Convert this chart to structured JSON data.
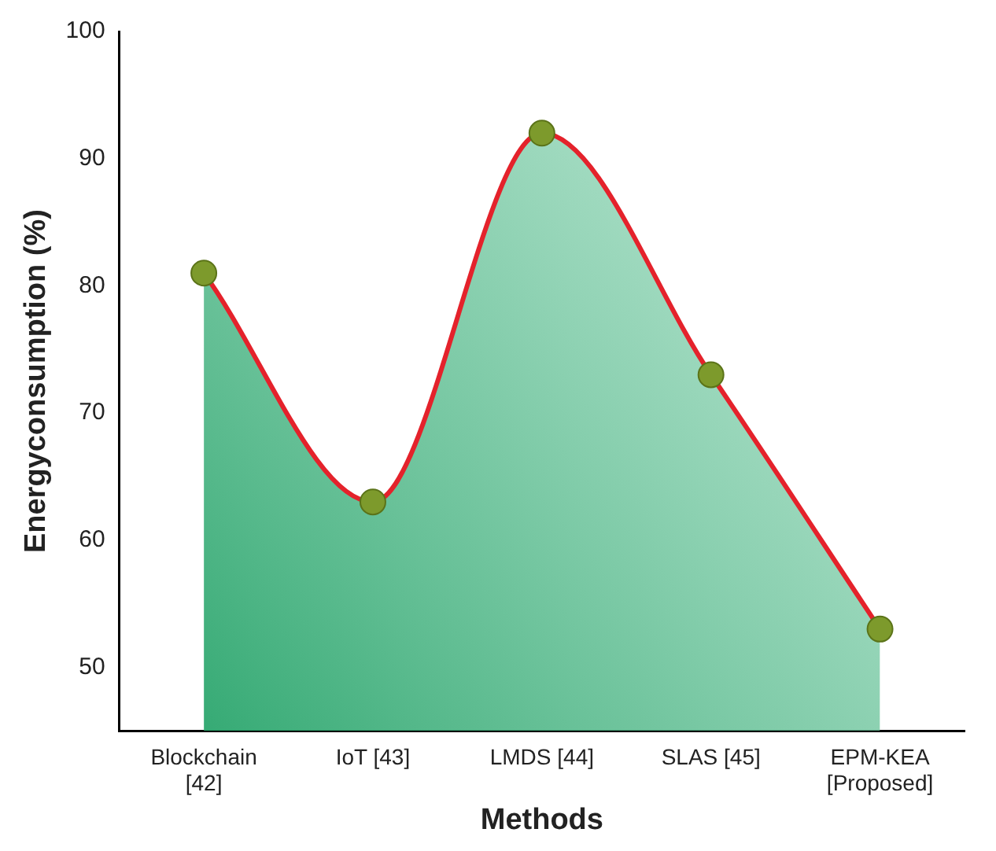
{
  "chart_data": {
    "type": "area",
    "xlabel": "Methods",
    "ylabel": "Energyconsumption (%)",
    "categories": [
      "Blockchain [42]",
      "IoT [43]",
      "LMDS [44]",
      "SLAS [45]",
      "EPM-KEA [Proposed]"
    ],
    "series": [
      {
        "color": "#e4222b",
        "values": [
          81,
          63,
          92,
          73,
          53
        ]
      }
    ],
    "ylim": [
      45,
      100
    ],
    "yticks": [
      50,
      60,
      70,
      80,
      90,
      100
    ],
    "grid": false,
    "legend": false,
    "marker": "circle",
    "line_style": "solid"
  }
}
